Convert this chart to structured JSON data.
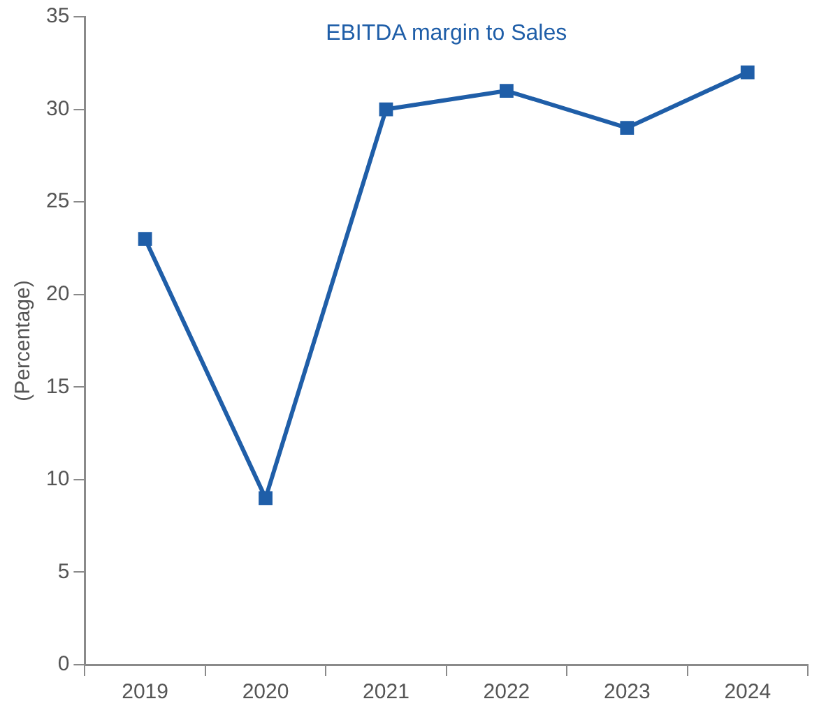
{
  "chart_data": {
    "type": "line",
    "title": "EBITDA margin to Sales",
    "ylabel": "(Percentage)",
    "categories": [
      "2019",
      "2020",
      "2021",
      "2022",
      "2023",
      "2024"
    ],
    "series": [
      {
        "color": "#1f5ea8",
        "values": [
          23,
          9,
          30,
          31,
          29,
          32
        ]
      }
    ],
    "ylim": [
      0,
      35
    ],
    "yticks": [
      0,
      5,
      10,
      15,
      20,
      25,
      30,
      35
    ],
    "grid": false,
    "legend": false,
    "marker": "square",
    "line_style": "solid"
  }
}
